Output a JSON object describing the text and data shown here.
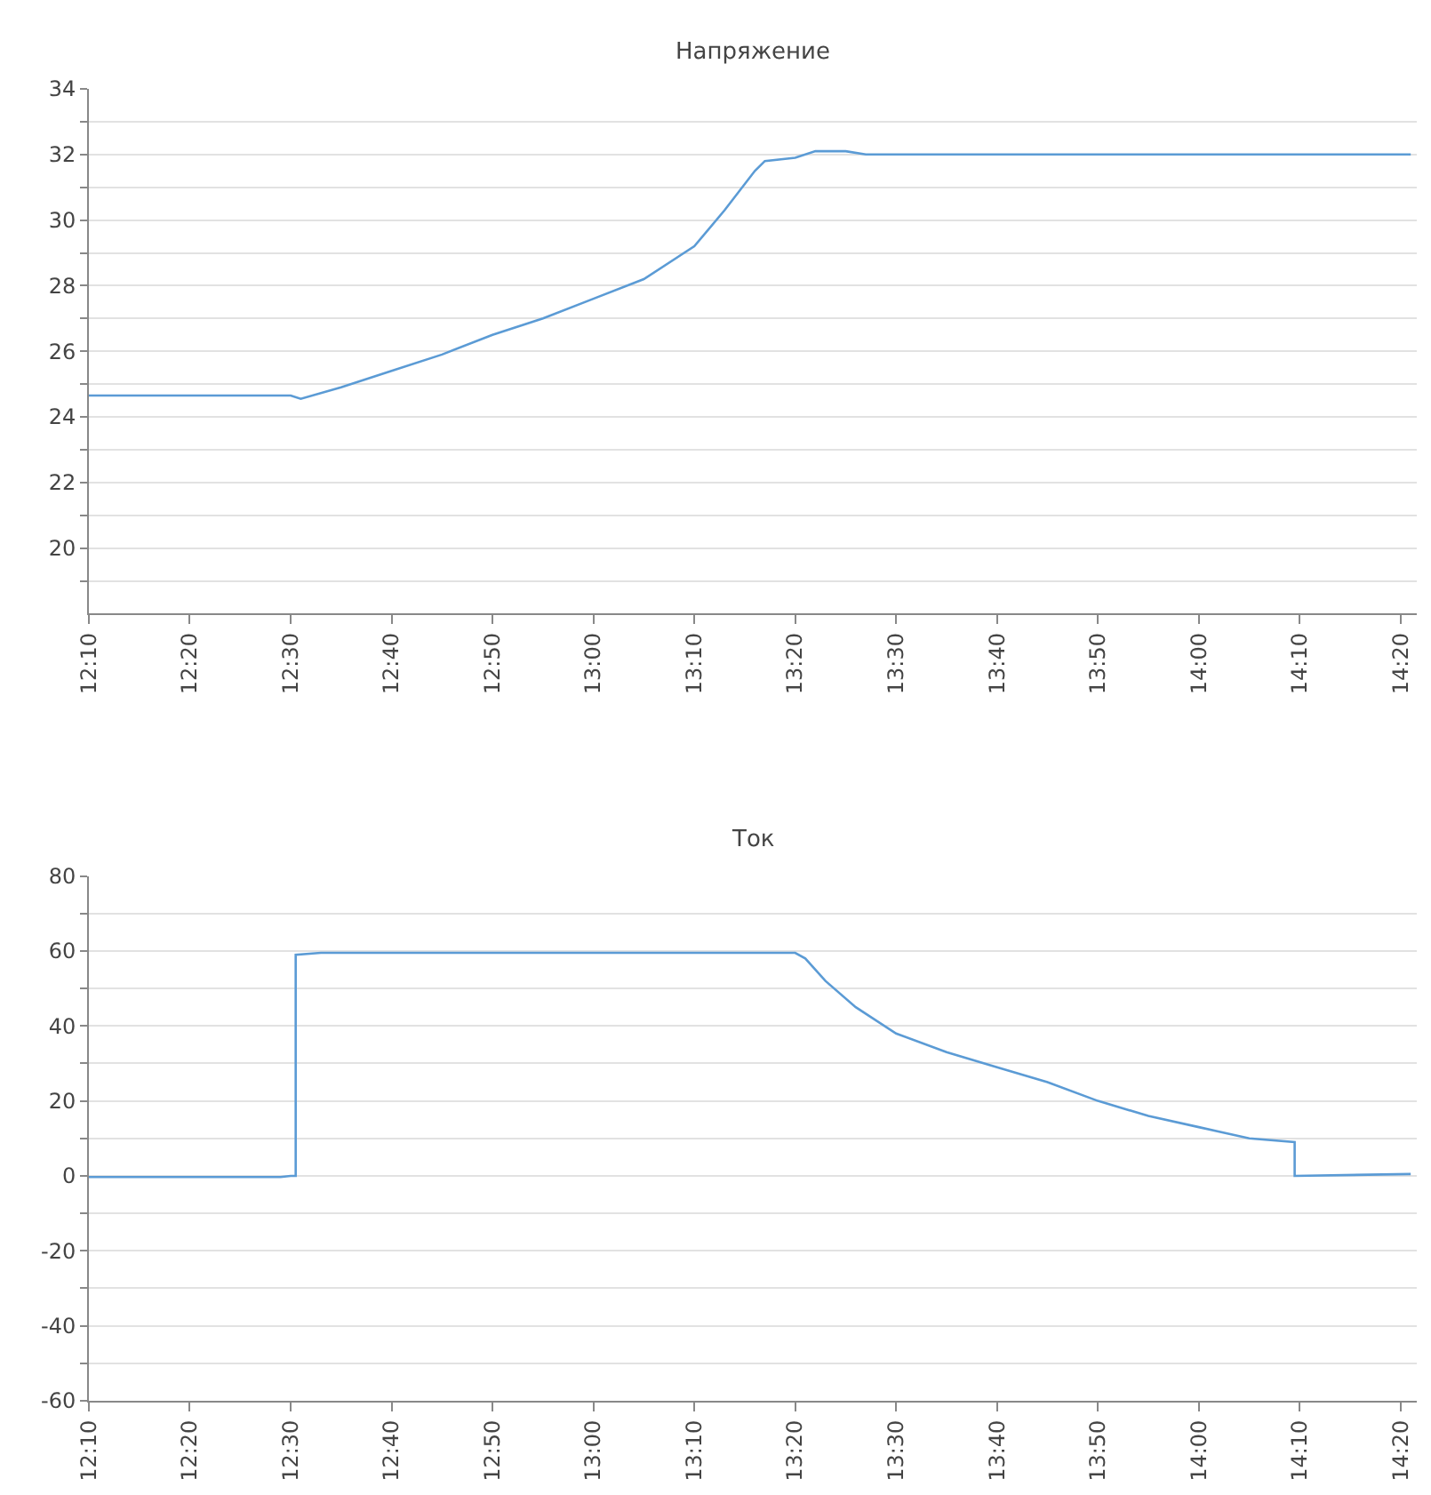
{
  "chart_data": [
    {
      "type": "line",
      "title": "Напряжение",
      "x": [
        12.1667,
        12.3333,
        12.5,
        12.5167,
        12.5833,
        12.6667,
        12.75,
        12.8333,
        12.9167,
        13.0,
        13.0833,
        13.1667,
        13.2167,
        13.2667,
        13.2833,
        13.3333,
        13.3667,
        13.4167,
        13.45,
        13.6667,
        13.9167,
        14.1667,
        14.35
      ],
      "series": [
        {
          "color": "#5b9bd5",
          "values": [
            24.65,
            24.65,
            24.65,
            24.55,
            24.9,
            25.4,
            25.9,
            26.5,
            27.0,
            27.6,
            28.2,
            29.2,
            30.3,
            31.5,
            31.8,
            31.9,
            32.1,
            32.1,
            32.0,
            32.0,
            32.0,
            32.0,
            32.0
          ]
        }
      ],
      "xlim": [
        12.1667,
        14.36
      ],
      "xticks": [
        {
          "value": 12.1667,
          "label": "12:10"
        },
        {
          "value": 12.3333,
          "label": "12:20"
        },
        {
          "value": 12.5,
          "label": "12:30"
        },
        {
          "value": 12.6667,
          "label": "12:40"
        },
        {
          "value": 12.8333,
          "label": "12:50"
        },
        {
          "value": 13.0,
          "label": "13:00"
        },
        {
          "value": 13.1667,
          "label": "13:10"
        },
        {
          "value": 13.3333,
          "label": "13:20"
        },
        {
          "value": 13.5,
          "label": "13:30"
        },
        {
          "value": 13.6667,
          "label": "13:40"
        },
        {
          "value": 13.8333,
          "label": "13:50"
        },
        {
          "value": 14.0,
          "label": "14:00"
        },
        {
          "value": 14.1667,
          "label": "14:10"
        },
        {
          "value": 14.3333,
          "label": "14:20"
        }
      ],
      "ylim": [
        18,
        34
      ],
      "yticks": [
        {
          "value": 19,
          "label": null
        },
        20,
        {
          "value": 21,
          "label": null
        },
        22,
        {
          "value": 23,
          "label": null
        },
        24,
        {
          "value": 25,
          "label": null
        },
        26,
        {
          "value": 27,
          "label": null
        },
        28,
        {
          "value": 29,
          "label": null
        },
        30,
        {
          "value": 31,
          "label": null
        },
        32,
        {
          "value": 33,
          "label": null
        },
        34
      ],
      "grid": "y"
    },
    {
      "type": "line",
      "title": "Ток",
      "x": [
        12.1667,
        12.4833,
        12.5,
        12.5083,
        12.5083,
        12.55,
        12.8333,
        13.1667,
        13.3333,
        13.35,
        13.3833,
        13.4333,
        13.5,
        13.5833,
        13.6667,
        13.75,
        13.8333,
        13.9167,
        14.0,
        14.0833,
        14.1583,
        14.1583,
        14.35
      ],
      "series": [
        {
          "color": "#5b9bd5",
          "values": [
            -0.3,
            -0.3,
            0,
            0,
            59,
            59.5,
            59.5,
            59.5,
            59.5,
            58,
            52,
            45,
            38,
            33,
            29,
            25,
            20,
            16,
            13,
            10,
            9,
            0,
            0.5
          ]
        }
      ],
      "xlim": [
        12.1667,
        14.36
      ],
      "xticks": [
        {
          "value": 12.1667,
          "label": "12:10"
        },
        {
          "value": 12.3333,
          "label": "12:20"
        },
        {
          "value": 12.5,
          "label": "12:30"
        },
        {
          "value": 12.6667,
          "label": "12:40"
        },
        {
          "value": 12.8333,
          "label": "12:50"
        },
        {
          "value": 13.0,
          "label": "13:00"
        },
        {
          "value": 13.1667,
          "label": "13:10"
        },
        {
          "value": 13.3333,
          "label": "13:20"
        },
        {
          "value": 13.5,
          "label": "13:30"
        },
        {
          "value": 13.6667,
          "label": "13:40"
        },
        {
          "value": 13.8333,
          "label": "13:50"
        },
        {
          "value": 14.0,
          "label": "14:00"
        },
        {
          "value": 14.1667,
          "label": "14:10"
        },
        {
          "value": 14.3333,
          "label": "14:20"
        }
      ],
      "ylim": [
        -60,
        80
      ],
      "yticks": [
        -60,
        {
          "value": -50,
          "label": null
        },
        -40,
        {
          "value": -30,
          "label": null
        },
        -20,
        {
          "value": -10,
          "label": null
        },
        0,
        {
          "value": 10,
          "label": null
        },
        20,
        {
          "value": 30,
          "label": null
        },
        40,
        {
          "value": 50,
          "label": null
        },
        60,
        {
          "value": 70,
          "label": null
        },
        80
      ],
      "grid": "y"
    }
  ]
}
